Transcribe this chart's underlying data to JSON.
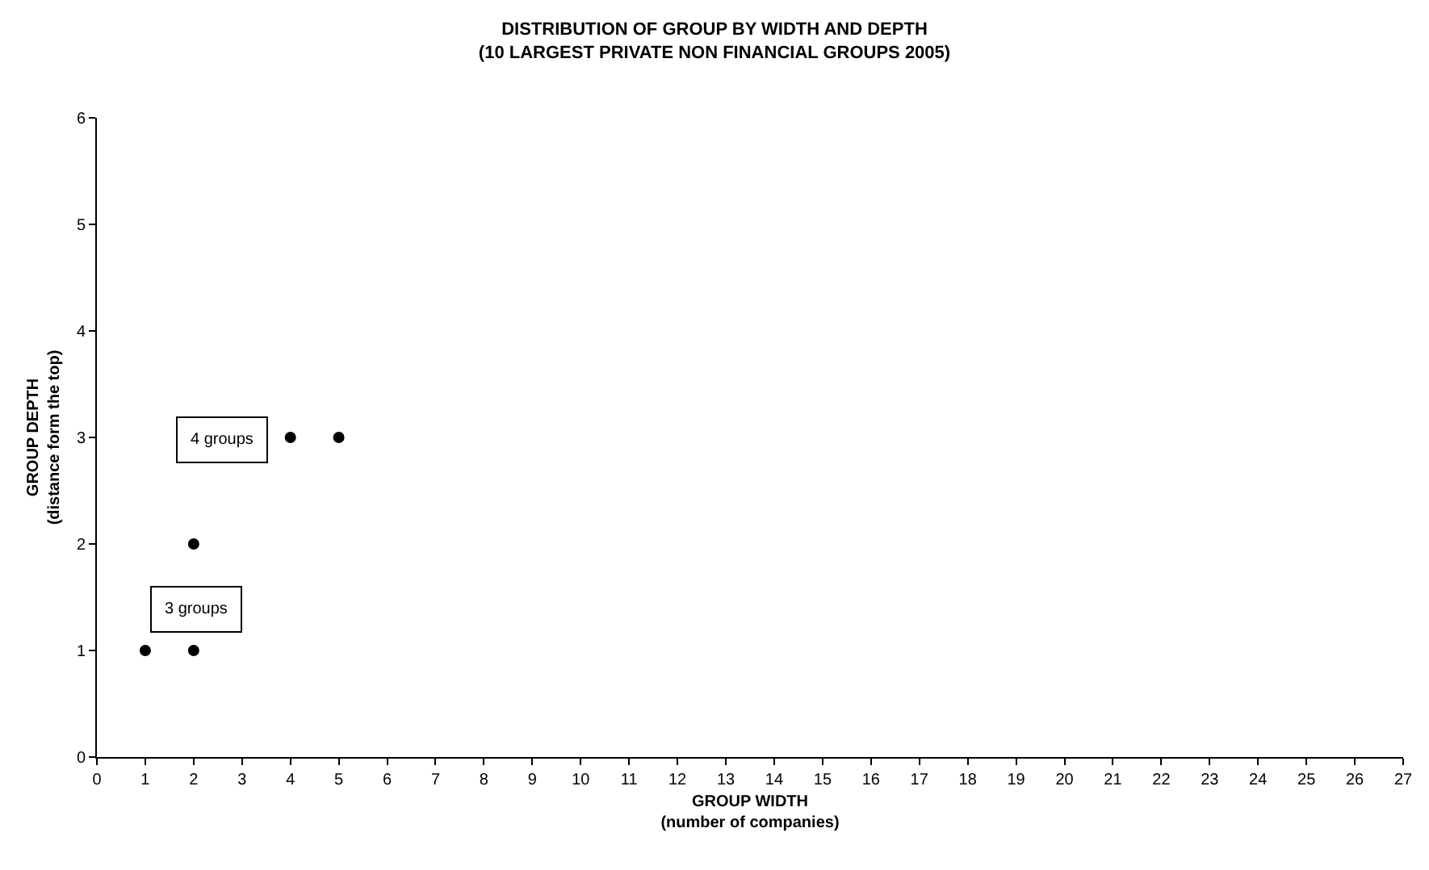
{
  "chart_data": {
    "type": "scatter",
    "title": "DISTRIBUTION OF GROUP BY WIDTH AND DEPTH\n(10 LARGEST PRIVATE NON FINANCIAL GROUPS 2005)",
    "xlabel": "GROUP WIDTH\n(number of companies)",
    "ylabel": "GROUP DEPTH\n(distance form the top)",
    "x": [
      1,
      2,
      2,
      4,
      5
    ],
    "series": [
      {
        "color": "#000000",
        "values": [
          1,
          1,
          2,
          3,
          3
        ]
      }
    ],
    "xlim": [
      0,
      27
    ],
    "xticks": [
      0,
      1,
      2,
      3,
      4,
      5,
      6,
      7,
      8,
      9,
      10,
      11,
      12,
      13,
      14,
      15,
      16,
      17,
      18,
      19,
      20,
      21,
      22,
      23,
      24,
      25,
      26,
      27
    ],
    "ylim": [
      0,
      6
    ],
    "yticks": [
      0,
      1,
      2,
      3,
      4,
      5,
      6
    ],
    "grid": false,
    "marker": "circle",
    "annotations": [
      "4 groups",
      "3 groups"
    ]
  }
}
